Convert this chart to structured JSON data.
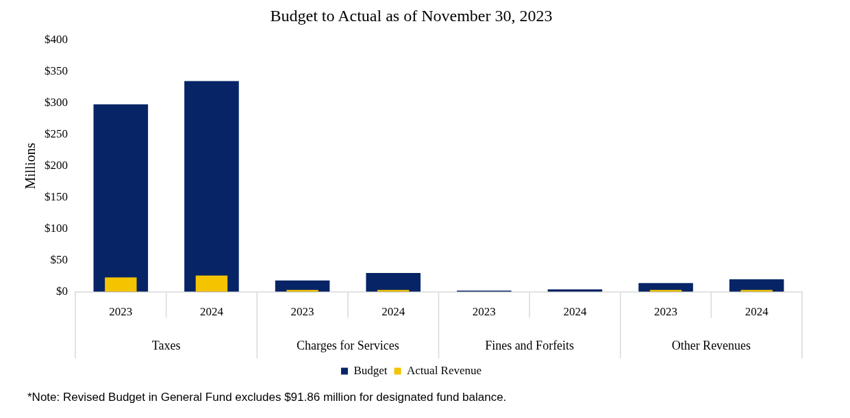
{
  "chart_data": {
    "type": "bar",
    "title": "Budget to Actual as of November 30, 2023",
    "ylabel": "Millions",
    "categories": [
      "2023",
      "2024",
      "2023",
      "2024",
      "2023",
      "2024",
      "2023",
      "2024"
    ],
    "series": [
      {
        "name": "Budget",
        "color": "#062466",
        "values": [
          298,
          335,
          18,
          30,
          2,
          4,
          14,
          20
        ]
      },
      {
        "name": "Actual Revenue",
        "color": "#f5c400",
        "values": [
          23,
          26,
          3,
          3,
          null,
          null,
          3,
          3
        ]
      }
    ],
    "ylim": [
      0,
      400
    ],
    "yticks": [
      {
        "value": 0,
        "label": "$0"
      },
      {
        "value": 50,
        "label": "$50"
      },
      {
        "value": 100,
        "label": "$100"
      },
      {
        "value": 150,
        "label": "$150"
      },
      {
        "value": 200,
        "label": "$200"
      },
      {
        "value": 250,
        "label": "$250"
      },
      {
        "value": 300,
        "label": "$300"
      },
      {
        "value": 350,
        "label": "$350"
      },
      {
        "value": 400,
        "label": "$400"
      }
    ],
    "grid": false,
    "legend": "bottom",
    "annotations": [
      "Taxes",
      "Charges for Services",
      "Fines and Forfeits",
      "Other Revenues",
      "*Note: Revised Budget in General Fund excludes $91.86 million for designated fund balance."
    ]
  }
}
